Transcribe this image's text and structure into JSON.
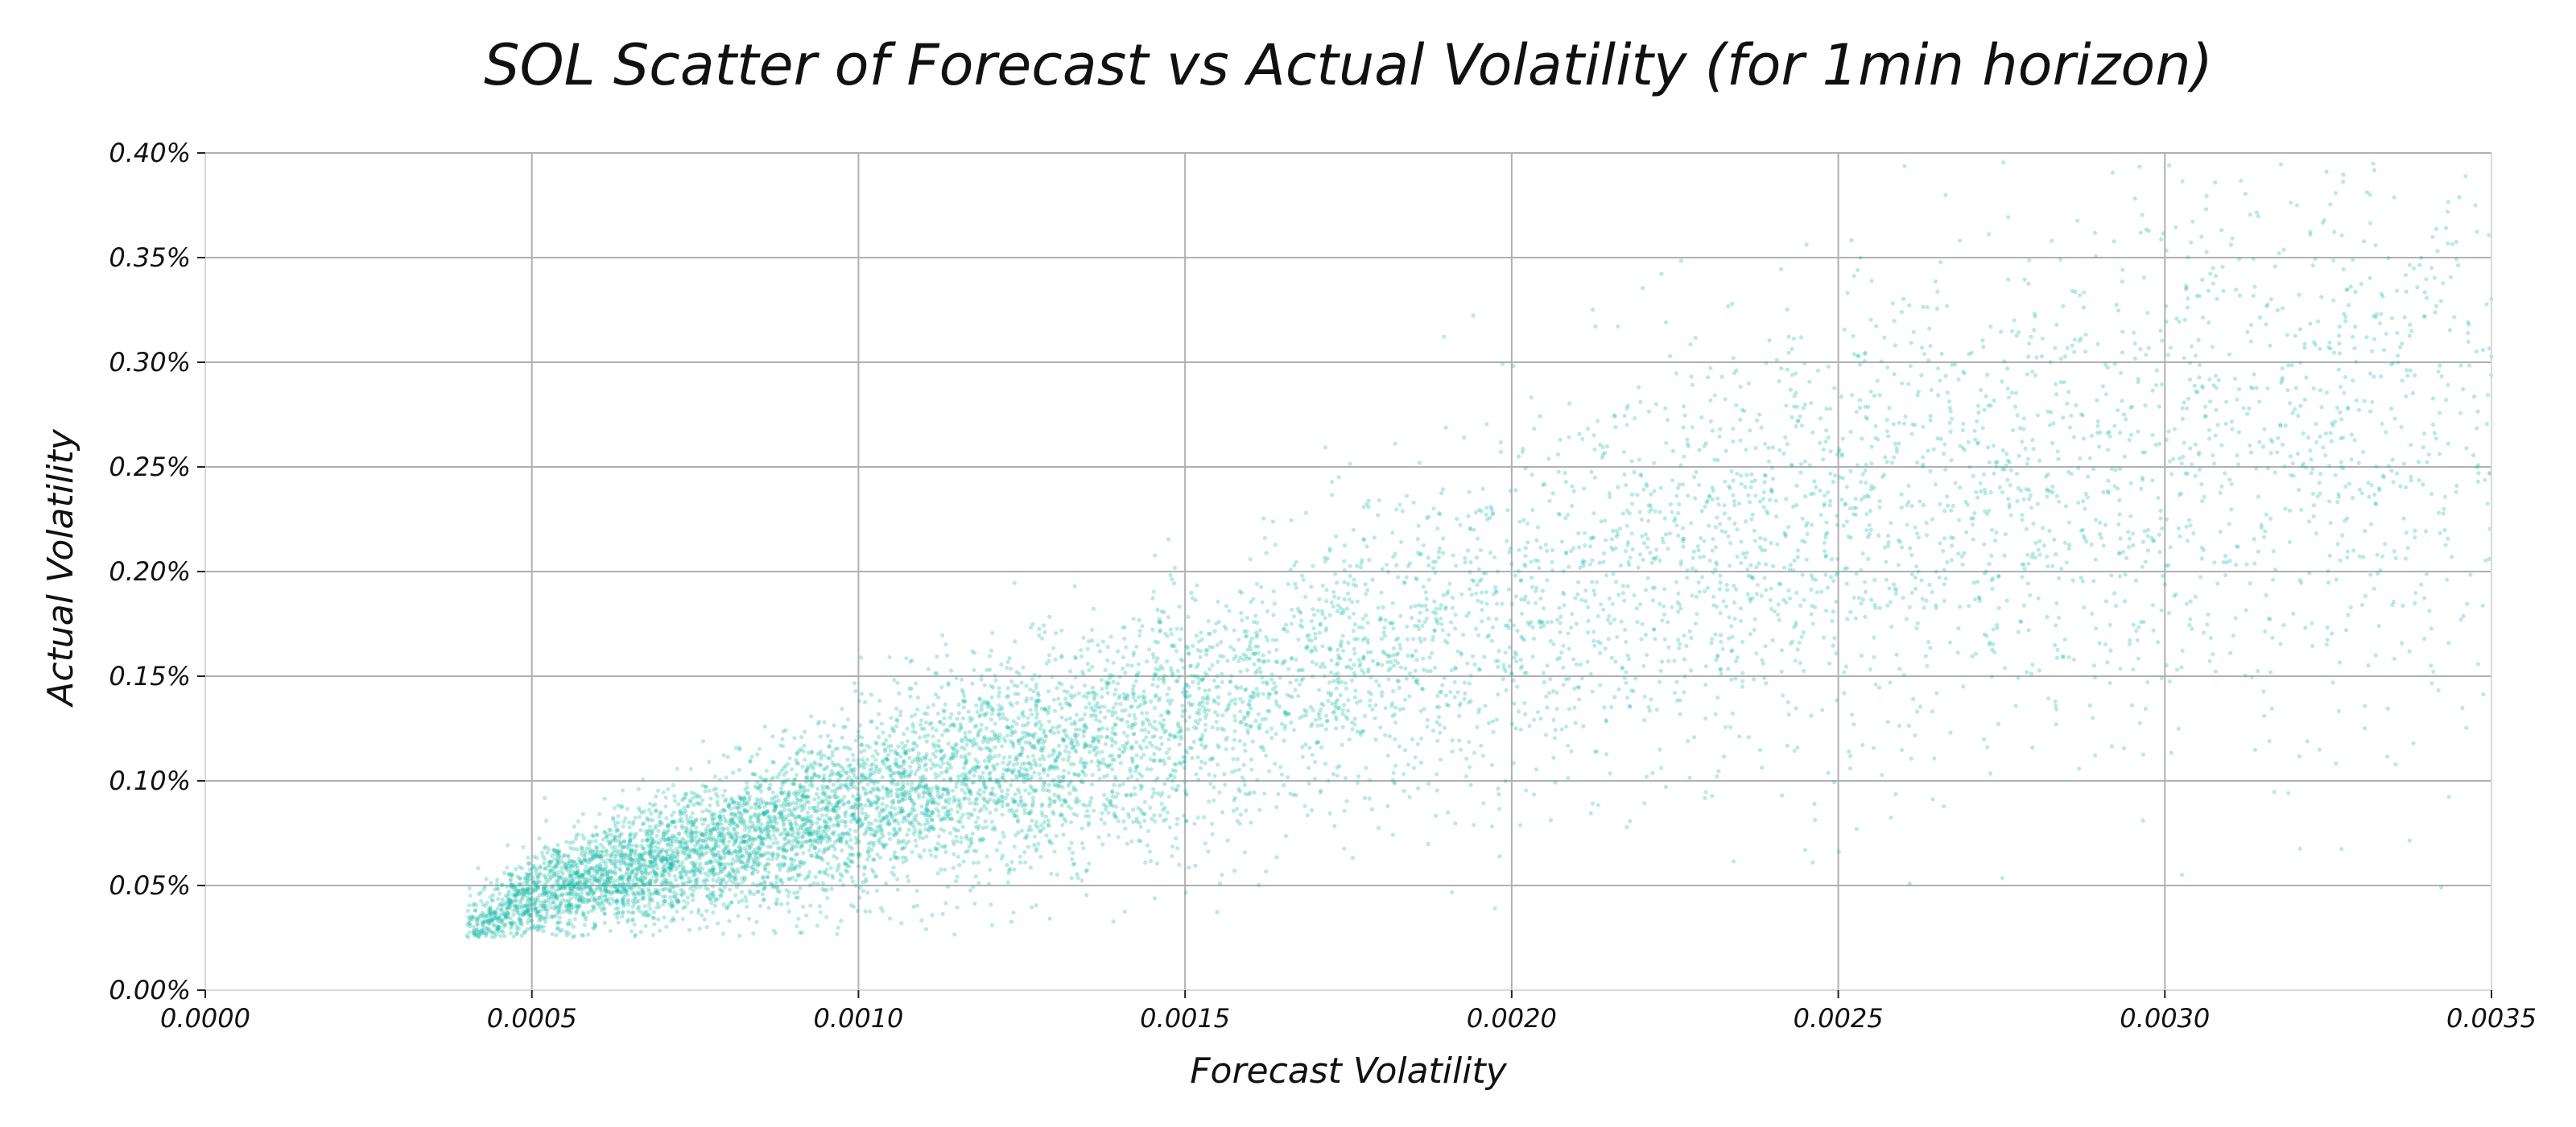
{
  "chart_data": {
    "type": "scatter",
    "title": "SOL Scatter of Forecast vs Actual Volatility (for 1min horizon)",
    "xlabel": "Forecast Volatility",
    "ylabel": "Actual Volatility",
    "xlim": [
      0,
      0.0035
    ],
    "ylim": [
      0,
      0.004
    ],
    "x_ticks": [
      0,
      0.0005,
      0.001,
      0.0015,
      0.002,
      0.0025,
      0.003,
      0.0035
    ],
    "x_tick_labels": [
      "0.0000",
      "0.0005",
      "0.0010",
      "0.0015",
      "0.0020",
      "0.0025",
      "0.0030",
      "0.0035"
    ],
    "y_ticks": [
      0,
      0.0005,
      0.001,
      0.0015,
      0.002,
      0.0025,
      0.003,
      0.0035,
      0.004
    ],
    "y_tick_labels": [
      "0.00%",
      "0.05%",
      "0.10%",
      "0.15%",
      "0.20%",
      "0.25%",
      "0.30%",
      "0.35%",
      "0.40%"
    ],
    "grid": true,
    "color": "#16b8a6",
    "point_opacity": 0.3,
    "trend_points": [
      {
        "x": 0.0004,
        "y": 0.00028
      },
      {
        "x": 0.0005,
        "y": 0.00045
      },
      {
        "x": 0.0006,
        "y": 0.00055
      },
      {
        "x": 0.0008,
        "y": 0.0007
      },
      {
        "x": 0.001,
        "y": 0.00088
      },
      {
        "x": 0.0012,
        "y": 0.00105
      },
      {
        "x": 0.0014,
        "y": 0.0012
      },
      {
        "x": 0.0016,
        "y": 0.0014
      },
      {
        "x": 0.0018,
        "y": 0.0016
      },
      {
        "x": 0.002,
        "y": 0.0018
      },
      {
        "x": 0.0022,
        "y": 0.002
      },
      {
        "x": 0.0025,
        "y": 0.0022
      },
      {
        "x": 0.003,
        "y": 0.0025
      },
      {
        "x": 0.0035,
        "y": 0.0027
      }
    ]
  }
}
